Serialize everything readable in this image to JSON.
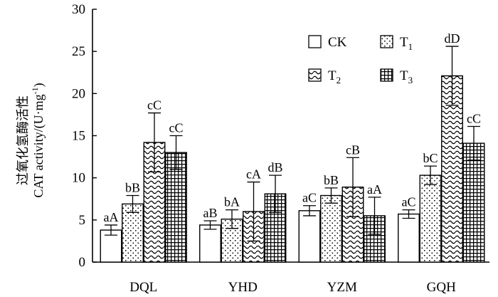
{
  "chart_data": {
    "type": "bar",
    "ylabel_cn": "过氧化氢酶活性",
    "ylabel_en": "CAT activity/(U·mg",
    "ylabel_sup": "-1",
    "ylabel_close": ")",
    "ylim": [
      0,
      30
    ],
    "yticks": [
      "0",
      "5",
      "10",
      "15",
      "20",
      "25",
      "30"
    ],
    "categories": [
      "DQL",
      "YHD",
      "YZM",
      "GQH"
    ],
    "legend_position": "top-right",
    "series": [
      {
        "name": "CK",
        "name_sub": "",
        "pattern": "plain",
        "values": [
          3.8,
          4.4,
          6.1,
          5.7
        ],
        "errors": [
          0.6,
          0.5,
          0.6,
          0.5
        ],
        "labels": [
          "aA",
          "aB",
          "aC",
          "aC"
        ]
      },
      {
        "name": "T",
        "name_sub": "1",
        "pattern": "dots",
        "values": [
          6.9,
          5.1,
          7.9,
          10.3
        ],
        "errors": [
          1.0,
          1.1,
          0.9,
          1.1
        ],
        "labels": [
          "bB",
          "bA",
          "bB",
          "bC"
        ]
      },
      {
        "name": "T",
        "name_sub": "2",
        "pattern": "wave",
        "values": [
          14.2,
          6.0,
          8.9,
          22.1
        ],
        "errors": [
          3.5,
          3.5,
          3.5,
          3.5
        ],
        "labels": [
          "cC",
          "cA",
          "cB",
          "dD"
        ]
      },
      {
        "name": "T",
        "name_sub": "3",
        "pattern": "grid",
        "values": [
          13.0,
          8.1,
          5.5,
          14.1
        ],
        "errors": [
          2.0,
          2.2,
          2.2,
          2.0
        ],
        "labels": [
          "cC",
          "dB",
          "aA",
          "cC"
        ]
      }
    ]
  }
}
